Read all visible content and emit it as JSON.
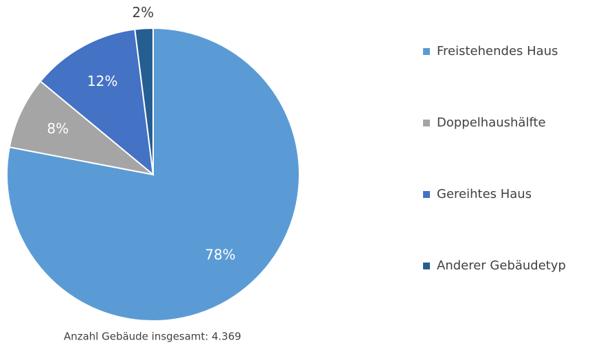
{
  "chart_data": {
    "type": "pie",
    "categories": [
      "Freistehendes Haus",
      "Doppelhaushälfte",
      "Gereihtes Haus",
      "Anderer Gebäudetyp"
    ],
    "values": [
      78,
      8,
      12,
      2
    ],
    "value_labels": [
      "78%",
      "8%",
      "12%",
      "2%"
    ],
    "colors": [
      "#5b9bd5",
      "#a5a5a5",
      "#4472c4",
      "#255e91"
    ],
    "annotation": "Anzahl Gebäude insgesamt: 4.369",
    "legend": "right"
  }
}
